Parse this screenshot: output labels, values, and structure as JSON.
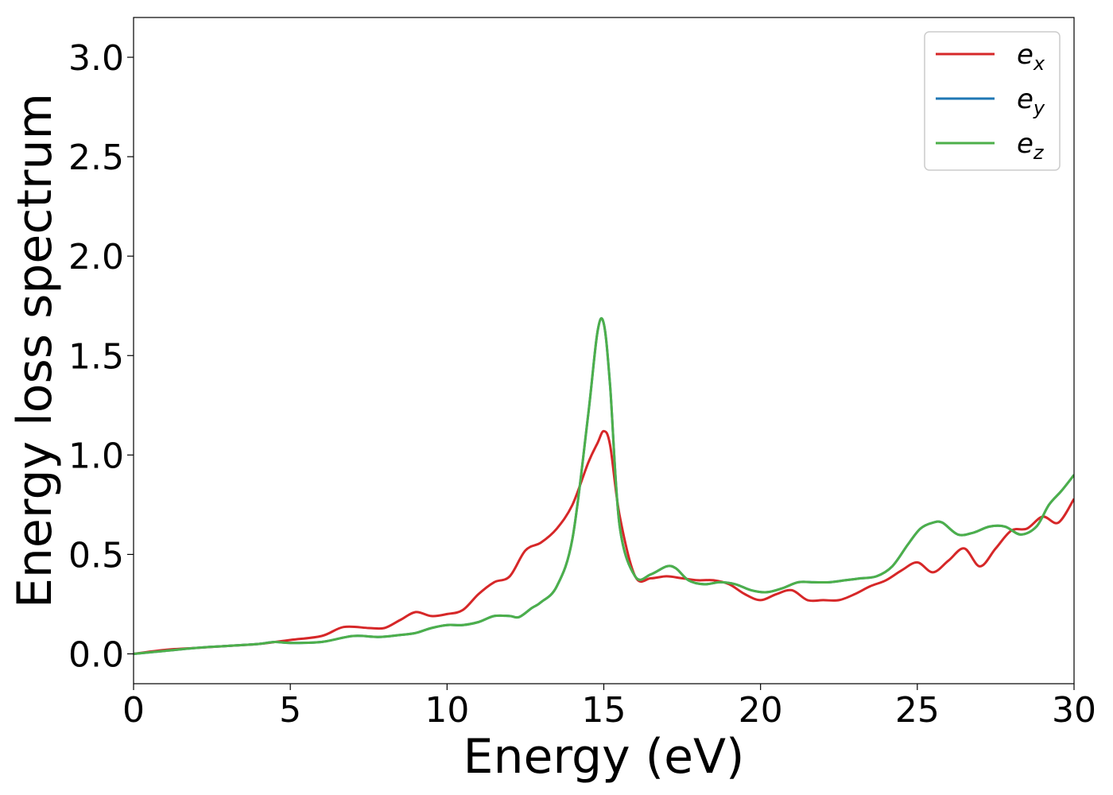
{
  "chart_data": {
    "type": "line",
    "xlabel": "Energy (eV)",
    "ylabel": "Energy loss spectrum",
    "xlim": [
      0,
      30
    ],
    "ylim": [
      -0.15,
      3.2
    ],
    "xticks": [
      0,
      5,
      10,
      15,
      20,
      25,
      30
    ],
    "xtick_labels": [
      "0",
      "5",
      "10",
      "15",
      "20",
      "25",
      "30"
    ],
    "yticks": [
      0.0,
      0.5,
      1.0,
      1.5,
      2.0,
      2.5,
      3.0
    ],
    "ytick_labels": [
      "0.0",
      "0.5",
      "1.0",
      "1.5",
      "2.0",
      "2.5",
      "3.0"
    ],
    "grid": false,
    "legend_position": "top-right",
    "series": [
      {
        "base": "e",
        "sub": "x",
        "color": "#d62728",
        "x": [
          0,
          1,
          2,
          3,
          4,
          5,
          6,
          6.7,
          7.5,
          8,
          8.5,
          9,
          9.5,
          10,
          10.5,
          11,
          11.5,
          12,
          12.5,
          13,
          13.5,
          14,
          14.5,
          14.8,
          15,
          15.2,
          15.5,
          16,
          16.5,
          17,
          17.5,
          18,
          18.5,
          19,
          19.5,
          20,
          20.5,
          21,
          21.5,
          22,
          22.5,
          23,
          23.5,
          24,
          24.5,
          25,
          25.5,
          26,
          26.5,
          27,
          27.5,
          28,
          28.5,
          29,
          29.5,
          30
        ],
        "y": [
          0.0,
          0.02,
          0.03,
          0.04,
          0.05,
          0.07,
          0.09,
          0.135,
          0.13,
          0.13,
          0.17,
          0.21,
          0.19,
          0.2,
          0.22,
          0.3,
          0.36,
          0.39,
          0.52,
          0.56,
          0.63,
          0.75,
          0.96,
          1.06,
          1.12,
          1.05,
          0.7,
          0.39,
          0.38,
          0.39,
          0.38,
          0.37,
          0.37,
          0.35,
          0.3,
          0.27,
          0.3,
          0.32,
          0.27,
          0.27,
          0.27,
          0.3,
          0.34,
          0.37,
          0.42,
          0.46,
          0.41,
          0.47,
          0.53,
          0.44,
          0.53,
          0.62,
          0.63,
          0.69,
          0.66,
          0.78
        ]
      },
      {
        "base": "e",
        "sub": "y",
        "color": "#1f77b4",
        "x": [
          0,
          1,
          2,
          3,
          4,
          4.5,
          5,
          6,
          7,
          7.8,
          8.5,
          9,
          9.5,
          10,
          10.5,
          11,
          11.5,
          12,
          12.3,
          12.7,
          13,
          13.5,
          14,
          14.5,
          14.8,
          15,
          15.2,
          15.5,
          16,
          16.5,
          17,
          17.3,
          17.7,
          18.2,
          18.7,
          19.2,
          19.7,
          20.2,
          20.7,
          21.2,
          21.7,
          22.2,
          22.7,
          23.2,
          23.7,
          24.2,
          24.7,
          25.1,
          25.5,
          25.8,
          26.3,
          26.8,
          27.3,
          27.8,
          28.3,
          28.8,
          29.2,
          29.6,
          30
        ],
        "y": [
          0.0,
          0.015,
          0.03,
          0.04,
          0.05,
          0.06,
          0.055,
          0.06,
          0.09,
          0.085,
          0.095,
          0.105,
          0.13,
          0.145,
          0.145,
          0.16,
          0.19,
          0.19,
          0.185,
          0.23,
          0.26,
          0.34,
          0.58,
          1.2,
          1.62,
          1.66,
          1.35,
          0.65,
          0.39,
          0.4,
          0.44,
          0.43,
          0.37,
          0.35,
          0.36,
          0.35,
          0.32,
          0.31,
          0.33,
          0.36,
          0.36,
          0.36,
          0.37,
          0.38,
          0.39,
          0.44,
          0.55,
          0.63,
          0.66,
          0.66,
          0.6,
          0.61,
          0.64,
          0.64,
          0.6,
          0.64,
          0.75,
          0.82,
          0.9
        ]
      },
      {
        "base": "e",
        "sub": "z",
        "color": "#4daf4a",
        "x": [
          0,
          1,
          2,
          3,
          4,
          4.5,
          5,
          6,
          7,
          7.8,
          8.5,
          9,
          9.5,
          10,
          10.5,
          11,
          11.5,
          12,
          12.3,
          12.7,
          13,
          13.5,
          14,
          14.5,
          14.8,
          15,
          15.2,
          15.5,
          16,
          16.5,
          17,
          17.3,
          17.7,
          18.2,
          18.7,
          19.2,
          19.7,
          20.2,
          20.7,
          21.2,
          21.7,
          22.2,
          22.7,
          23.2,
          23.7,
          24.2,
          24.7,
          25.1,
          25.5,
          25.8,
          26.3,
          26.8,
          27.3,
          27.8,
          28.3,
          28.8,
          29.2,
          29.6,
          30
        ],
        "y": [
          0.0,
          0.015,
          0.03,
          0.04,
          0.05,
          0.06,
          0.055,
          0.06,
          0.09,
          0.085,
          0.095,
          0.105,
          0.13,
          0.145,
          0.145,
          0.16,
          0.19,
          0.19,
          0.185,
          0.23,
          0.26,
          0.34,
          0.58,
          1.2,
          1.62,
          1.66,
          1.35,
          0.65,
          0.39,
          0.4,
          0.44,
          0.43,
          0.37,
          0.35,
          0.36,
          0.35,
          0.32,
          0.31,
          0.33,
          0.36,
          0.36,
          0.36,
          0.37,
          0.38,
          0.39,
          0.44,
          0.55,
          0.63,
          0.66,
          0.66,
          0.6,
          0.61,
          0.64,
          0.64,
          0.6,
          0.64,
          0.75,
          0.82,
          0.9
        ]
      }
    ]
  }
}
